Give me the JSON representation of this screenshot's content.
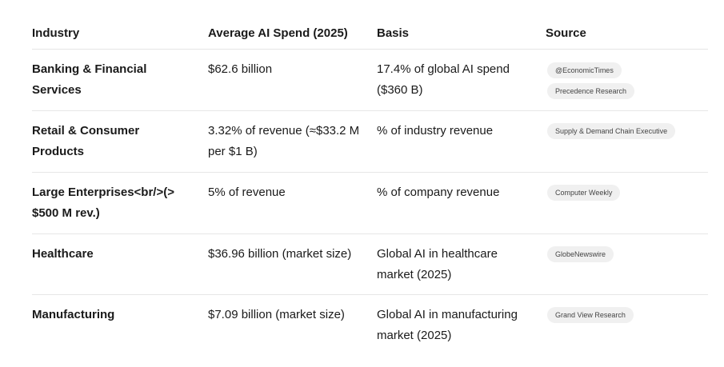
{
  "table": {
    "headers": {
      "industry": "Industry",
      "spend": "Average AI Spend (2025)",
      "basis": "Basis",
      "source": "Source"
    },
    "rows": [
      {
        "industry": "Banking & Financial Services",
        "spend": "$62.6 billion",
        "basis": "17.4% of global AI spend ($360 B)",
        "sources": [
          "@EconomicTimes",
          "Precedence Research"
        ]
      },
      {
        "industry": "Retail & Consumer Products",
        "spend": "3.32% of revenue (≈$33.2 M per $1 B)",
        "basis": "% of industry revenue",
        "sources": [
          "Supply & Demand Chain Executive"
        ]
      },
      {
        "industry": "Large Enterprises<br/>(> $500 M rev.)",
        "spend": "5% of revenue",
        "basis": "% of company revenue",
        "sources": [
          "Computer Weekly"
        ]
      },
      {
        "industry": "Healthcare",
        "spend": "$36.96 billion (market size)",
        "basis": "Global AI in healthcare market (2025)",
        "sources": [
          "GlobeNewswire"
        ]
      },
      {
        "industry": "Manufacturing",
        "spend": "$7.09 billion (market size)",
        "basis": "Global AI in manufacturing market (2025)",
        "sources": [
          "Grand View Research"
        ]
      }
    ]
  }
}
